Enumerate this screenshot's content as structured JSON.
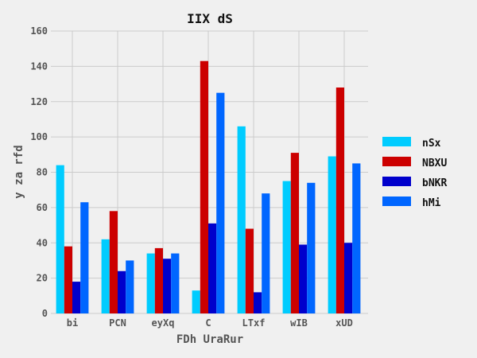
{
  "chart_data": {
    "type": "bar",
    "title": "IIX  dS",
    "xlabel": "FDh  UraRur",
    "ylabel": "y za  rfd",
    "categories": [
      "bi",
      "PCN",
      "eyXq",
      "C",
      "LTxf",
      "wIB",
      "xUD"
    ],
    "series": [
      {
        "name": "nSx",
        "color": "#00ccff",
        "values": [
          84,
          42,
          34,
          13,
          106,
          75,
          89
        ]
      },
      {
        "name": "NBXU",
        "color": "#cc0000",
        "values": [
          38,
          58,
          37,
          143,
          48,
          91,
          128
        ]
      },
      {
        "name": "bNKR",
        "color": "#0000cc",
        "values": [
          18,
          24,
          31,
          51,
          12,
          39,
          40
        ]
      },
      {
        "name": "hMi",
        "color": "#0066ff",
        "values": [
          63,
          30,
          34,
          125,
          68,
          74,
          85
        ]
      }
    ],
    "ylim": [
      0,
      160
    ],
    "yticks": [
      0,
      20,
      40,
      60,
      80,
      100,
      120,
      140,
      160
    ],
    "grid": true,
    "legend": "right"
  }
}
